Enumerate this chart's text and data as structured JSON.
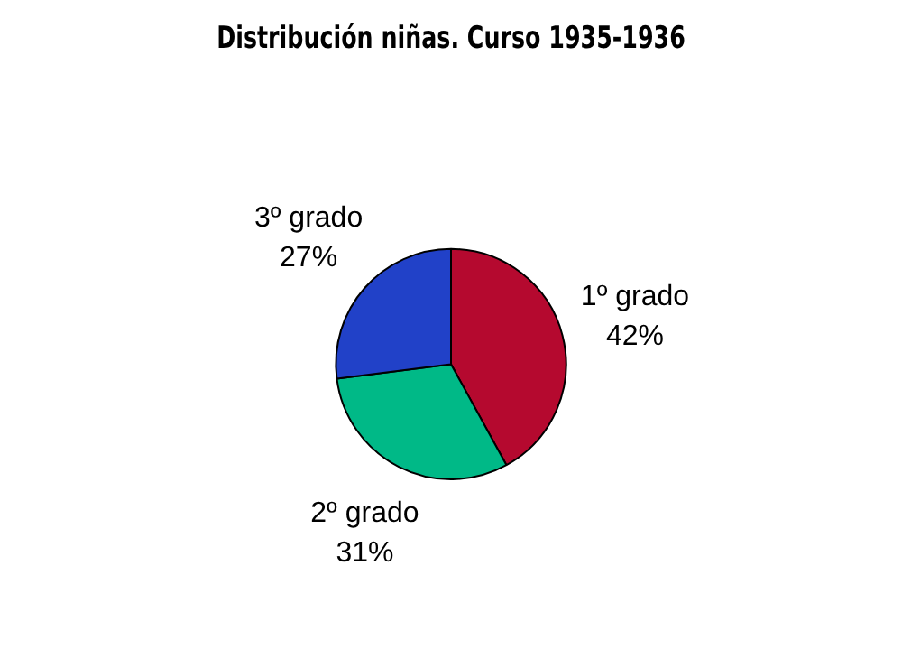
{
  "chart_data": {
    "type": "pie",
    "title": "Distribución niñas. Curso 1935-1936",
    "categories": [
      "1º grado",
      "2º grado",
      "3º grado"
    ],
    "values": [
      42,
      31,
      27
    ],
    "value_labels": [
      "42%",
      "31%",
      "27%"
    ],
    "colors": [
      "#b5092f",
      "#00b987",
      "#2141c8"
    ],
    "legend": false
  }
}
